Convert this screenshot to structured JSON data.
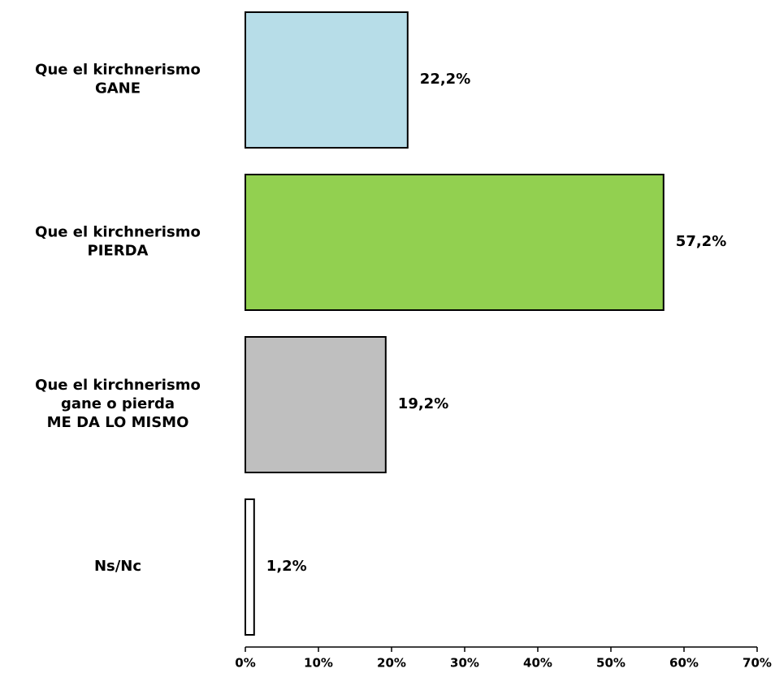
{
  "chart_data": {
    "type": "barh",
    "categories": [
      [
        "Que el kirchnerismo",
        "GANE"
      ],
      [
        "Que el kirchnerismo",
        "PIERDA"
      ],
      [
        "Que el kirchnerismo",
        "gane o pierda",
        "ME DA LO MISMO"
      ],
      [
        "Ns/Nc"
      ]
    ],
    "values": [
      22.2,
      57.2,
      19.2,
      1.2
    ],
    "value_labels": [
      "22,2%",
      "57,2%",
      "19,2%",
      "1,2%"
    ],
    "colors": [
      "#b7dde8",
      "#92d050",
      "#bfbfbf",
      "#ffffff"
    ],
    "xlim": [
      0,
      70
    ],
    "xticks": [
      {
        "value": 0,
        "label": "0%"
      },
      {
        "value": 10,
        "label": "10%"
      },
      {
        "value": 20,
        "label": "20%"
      },
      {
        "value": 30,
        "label": "30%"
      },
      {
        "value": 40,
        "label": "40%"
      },
      {
        "value": 50,
        "label": "50%"
      },
      {
        "value": 60,
        "label": "60%"
      },
      {
        "value": 70,
        "label": "70%"
      }
    ],
    "grid": false
  }
}
